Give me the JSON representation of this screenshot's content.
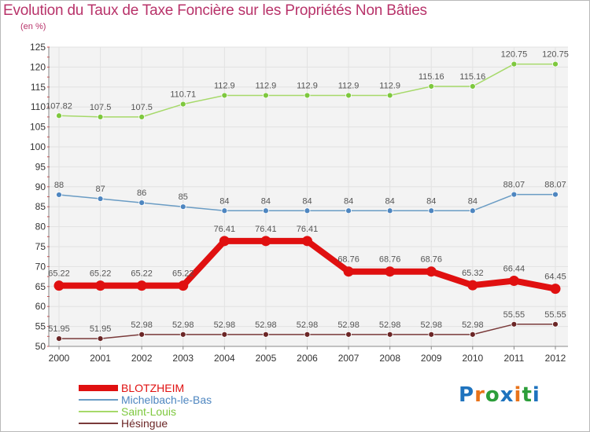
{
  "header": {
    "title": "Evolution du Taux de Taxe Foncière sur les Propriétés Non Bâties",
    "subtitle": "(en %)"
  },
  "logo": {
    "letters": [
      "P",
      "r",
      "o",
      "x",
      "i",
      "t",
      "i"
    ],
    "colors": [
      "#1e73be",
      "#e8731a",
      "#2c9e3a",
      "#1e73be",
      "#e8731a",
      "#2c9e3a",
      "#1e73be"
    ]
  },
  "chart_data": {
    "type": "line",
    "title": "Evolution du Taux de Taxe Foncière sur les Propriétés Non Bâties",
    "subtitle": "(en %)",
    "x": [
      2000,
      2001,
      2002,
      2003,
      2004,
      2005,
      2006,
      2007,
      2008,
      2009,
      2010,
      2011,
      2012
    ],
    "ylim": [
      50,
      125
    ],
    "yticks": [
      50,
      55,
      60,
      65,
      70,
      75,
      80,
      85,
      90,
      95,
      100,
      105,
      110,
      115,
      120,
      125
    ],
    "grid": true,
    "legend_position": "bottom-left",
    "series": [
      {
        "name": "BLOTZHEIM",
        "color": "#e01010",
        "emphasis": true,
        "values": [
          65.22,
          65.22,
          65.22,
          65.22,
          76.41,
          76.41,
          76.41,
          68.76,
          68.76,
          68.76,
          65.32,
          66.44,
          64.45
        ],
        "labels": [
          "65.22",
          "65.22",
          "65.22",
          "65.22",
          "76.41",
          "76.41",
          "76.41",
          "68.76",
          "68.76",
          "68.76",
          "65.32",
          "66.44",
          "64.45"
        ]
      },
      {
        "name": "Michelbach-le-Bas",
        "color": "#6a9cc4",
        "marker": "#4e86c0",
        "values": [
          88,
          87,
          86,
          85,
          84,
          84,
          84,
          84,
          84,
          84,
          84,
          88.07,
          88.07
        ],
        "labels": [
          "88",
          "87",
          "86",
          "85",
          "84",
          "84",
          "84",
          "84",
          "84",
          "84",
          "84",
          "88.07",
          "88.07"
        ]
      },
      {
        "name": "Saint-Louis",
        "color": "#a6d96a",
        "marker": "#7ec83e",
        "values": [
          107.82,
          107.5,
          107.5,
          110.71,
          112.9,
          112.9,
          112.9,
          112.9,
          112.9,
          115.16,
          115.16,
          120.75,
          120.75
        ],
        "labels": [
          "107.82",
          "107.5",
          "107.5",
          "110.71",
          "112.9",
          "112.9",
          "112.9",
          "112.9",
          "112.9",
          "115.16",
          "115.16",
          "120.75",
          "120.75"
        ]
      },
      {
        "name": "Hésingue",
        "color": "#7a3a3a",
        "marker": "#6b2626",
        "values": [
          51.95,
          51.95,
          52.98,
          52.98,
          52.98,
          52.98,
          52.98,
          52.98,
          52.98,
          52.98,
          52.98,
          55.55,
          55.55
        ],
        "labels": [
          "51.95",
          "51.95",
          "52.98",
          "52.98",
          "52.98",
          "52.98",
          "52.98",
          "52.98",
          "52.98",
          "52.98",
          "52.98",
          "55.55",
          "55.55"
        ]
      }
    ]
  }
}
